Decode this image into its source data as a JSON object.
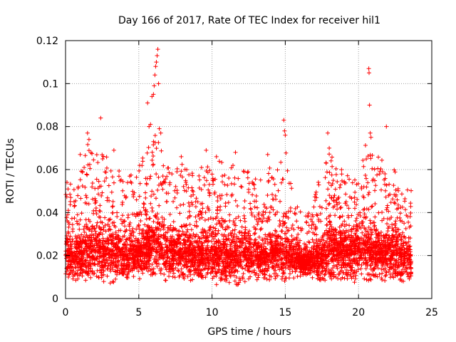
{
  "chart_data": {
    "type": "scatter",
    "title": "Day 166 of 2017, Rate Of TEC Index for receiver hil1",
    "xlabel": "GPS time / hours",
    "ylabel": "ROTI / TECUs",
    "xlim": [
      0,
      25
    ],
    "ylim": [
      0,
      0.12
    ],
    "xticks": [
      0,
      5,
      10,
      15,
      20,
      25
    ],
    "xtick_labels": [
      "0",
      "5",
      "10",
      "15",
      "20",
      "25"
    ],
    "yticks": [
      0,
      0.02,
      0.04,
      0.06,
      0.08,
      0.1,
      0.12
    ],
    "ytick_labels": [
      "0",
      "0.02",
      "0.04",
      "0.06",
      "0.08",
      "0.1",
      "0.12"
    ],
    "grid": true,
    "marker": "+",
    "color": "#ff0000",
    "series": [
      {
        "name": "ROTI",
        "x": [
          2.4,
          5.6,
          5.9,
          6.0,
          6.05,
          6.1,
          6.15,
          6.2,
          6.25,
          6.3,
          6.35,
          5.7,
          5.8,
          6.4,
          6.5,
          14.9,
          14.95,
          15.0,
          20.7,
          20.72,
          20.75,
          20.8,
          20.85,
          21.9,
          1.5,
          1.6,
          7.9,
          9.6,
          13.8,
          17.9,
          18.0,
          1.0,
          3.3,
          10.3,
          11.6
        ],
        "y": [
          0.084,
          0.091,
          0.094,
          0.095,
          0.099,
          0.104,
          0.108,
          0.11,
          0.113,
          0.116,
          0.1,
          0.08,
          0.081,
          0.079,
          0.077,
          0.083,
          0.078,
          0.076,
          0.107,
          0.105,
          0.09,
          0.077,
          0.075,
          0.08,
          0.077,
          0.074,
          0.066,
          0.069,
          0.067,
          0.077,
          0.07,
          0.067,
          0.069,
          0.066,
          0.068
        ]
      }
    ],
    "envelope": {
      "x": [
        0,
        0.5,
        1,
        1.5,
        2,
        2.5,
        3,
        3.5,
        4,
        4.5,
        5,
        5.5,
        6,
        6.5,
        7,
        7.5,
        8,
        8.5,
        9,
        9.5,
        10,
        10.5,
        11,
        11.5,
        12,
        12.5,
        13,
        13.5,
        14,
        14.5,
        15,
        15.5,
        16,
        16.5,
        17,
        17.5,
        18,
        18.5,
        19,
        19.5,
        20,
        20.5,
        21,
        21.5,
        22,
        22.5,
        23,
        23.6
      ],
      "top": [
        0.058,
        0.052,
        0.062,
        0.073,
        0.07,
        0.072,
        0.063,
        0.062,
        0.056,
        0.06,
        0.067,
        0.071,
        0.078,
        0.072,
        0.065,
        0.066,
        0.063,
        0.06,
        0.058,
        0.066,
        0.06,
        0.064,
        0.064,
        0.062,
        0.06,
        0.063,
        0.058,
        0.055,
        0.062,
        0.062,
        0.072,
        0.05,
        0.042,
        0.038,
        0.05,
        0.058,
        0.07,
        0.067,
        0.058,
        0.062,
        0.066,
        0.072,
        0.068,
        0.066,
        0.058,
        0.061,
        0.055,
        0.052
      ],
      "bottom": [
        0.01,
        0.008,
        0.009,
        0.008,
        0.009,
        0.005,
        0.006,
        0.007,
        0.009,
        0.01,
        0.009,
        0.009,
        0.01,
        0.009,
        0.008,
        0.009,
        0.009,
        0.008,
        0.007,
        0.008,
        0.007,
        0.006,
        0.008,
        0.006,
        0.007,
        0.008,
        0.008,
        0.009,
        0.008,
        0.009,
        0.007,
        0.008,
        0.01,
        0.011,
        0.009,
        0.008,
        0.008,
        0.009,
        0.007,
        0.006,
        0.007,
        0.008,
        0.008,
        0.008,
        0.007,
        0.007,
        0.005,
        0.009
      ],
      "median": [
        0.02,
        0.018,
        0.02,
        0.022,
        0.022,
        0.021,
        0.02,
        0.02,
        0.019,
        0.02,
        0.02,
        0.022,
        0.024,
        0.023,
        0.021,
        0.021,
        0.02,
        0.02,
        0.019,
        0.021,
        0.02,
        0.02,
        0.02,
        0.019,
        0.019,
        0.02,
        0.019,
        0.018,
        0.02,
        0.02,
        0.021,
        0.019,
        0.017,
        0.016,
        0.018,
        0.019,
        0.022,
        0.022,
        0.02,
        0.02,
        0.022,
        0.023,
        0.022,
        0.021,
        0.02,
        0.02,
        0.018,
        0.018
      ]
    }
  }
}
